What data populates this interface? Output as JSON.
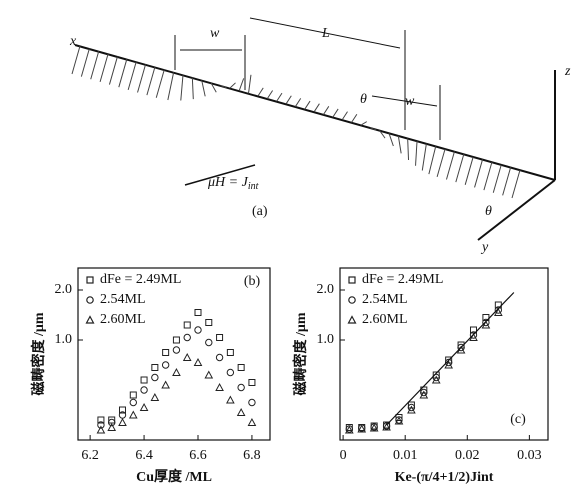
{
  "diagram": {
    "labels": [
      "x",
      "w",
      "L",
      "z",
      "θ",
      "w",
      "θ",
      "y"
    ],
    "equation": "μH = J",
    "equation_sub": "int",
    "caption": "(a)"
  },
  "chart_data": [
    {
      "type": "scatter",
      "panel": "(b)",
      "ylabel": "磁畴密度 /μm",
      "xlabel": "Cu厚度 /ML",
      "xlim": [
        6.155,
        6.867
      ],
      "xticks": [
        6.2,
        6.4,
        6.6,
        6.8
      ],
      "ylim": [
        -1.0,
        2.44
      ],
      "yticks": [
        {
          "value": 1,
          "label": "1.0"
        },
        {
          "value": 2,
          "label": "2.0"
        }
      ],
      "x": [
        6.24,
        6.28,
        6.32,
        6.36,
        6.4,
        6.44,
        6.48,
        6.52,
        6.56,
        6.6,
        6.64,
        6.68,
        6.72,
        6.76,
        6.8
      ],
      "series": [
        {
          "name": "dFe = 2.49ML",
          "marker": "square",
          "color": "#222",
          "values": [
            -0.6,
            -0.6,
            -0.4,
            -0.1,
            0.2,
            0.45,
            0.75,
            1.0,
            1.3,
            1.55,
            1.35,
            1.05,
            0.75,
            0.45,
            0.15
          ]
        },
        {
          "name": "2.54ML",
          "marker": "circle",
          "color": "#222",
          "values": [
            -0.7,
            -0.65,
            -0.5,
            -0.25,
            0.0,
            0.25,
            0.5,
            0.8,
            1.05,
            1.2,
            0.95,
            0.65,
            0.35,
            0.05,
            -0.25
          ]
        },
        {
          "name": "2.60ML",
          "marker": "triangle",
          "color": "#222",
          "values": [
            -0.8,
            -0.75,
            -0.65,
            -0.5,
            -0.35,
            -0.15,
            0.1,
            0.35,
            0.65,
            0.55,
            0.3,
            0.05,
            -0.2,
            -0.45,
            -0.65
          ]
        }
      ]
    },
    {
      "type": "scatter",
      "panel": "(c)",
      "ylabel": "磁畴密度 /μm",
      "xlabel": "Ke-(π/4+1/2)Jint",
      "xlim": [
        -0.0005,
        0.033
      ],
      "xticks": [
        0,
        0.01,
        0.02,
        0.03
      ],
      "ylim": [
        -1.0,
        2.44
      ],
      "yticks": [
        {
          "value": 1,
          "label": "1.0"
        },
        {
          "value": 2,
          "label": "2.0"
        }
      ],
      "x": [
        0.001,
        0.003,
        0.005,
        0.007,
        0.009,
        0.011,
        0.013,
        0.015,
        0.017,
        0.019,
        0.021,
        0.023,
        0.025
      ],
      "series": [
        {
          "name": "dFe = 2.49ML",
          "marker": "square",
          "color": "#222",
          "values": [
            -0.75,
            -0.75,
            -0.72,
            -0.7,
            -0.55,
            -0.3,
            0.0,
            0.3,
            0.6,
            0.9,
            1.2,
            1.45,
            1.7
          ]
        },
        {
          "name": "2.54ML",
          "marker": "circle",
          "color": "#222",
          "values": [
            -0.78,
            -0.76,
            -0.74,
            -0.72,
            -0.6,
            -0.35,
            -0.05,
            0.25,
            0.55,
            0.85,
            1.1,
            1.35,
            1.6
          ]
        },
        {
          "name": "2.60ML",
          "marker": "triangle",
          "color": "#222",
          "values": [
            -0.8,
            -0.78,
            -0.76,
            -0.74,
            -0.62,
            -0.4,
            -0.1,
            0.2,
            0.5,
            0.8,
            1.05,
            1.3,
            1.55
          ]
        }
      ],
      "fit": {
        "x": [
          0.007,
          0.0275
        ],
        "values": [
          -0.7,
          1.95
        ]
      }
    }
  ]
}
